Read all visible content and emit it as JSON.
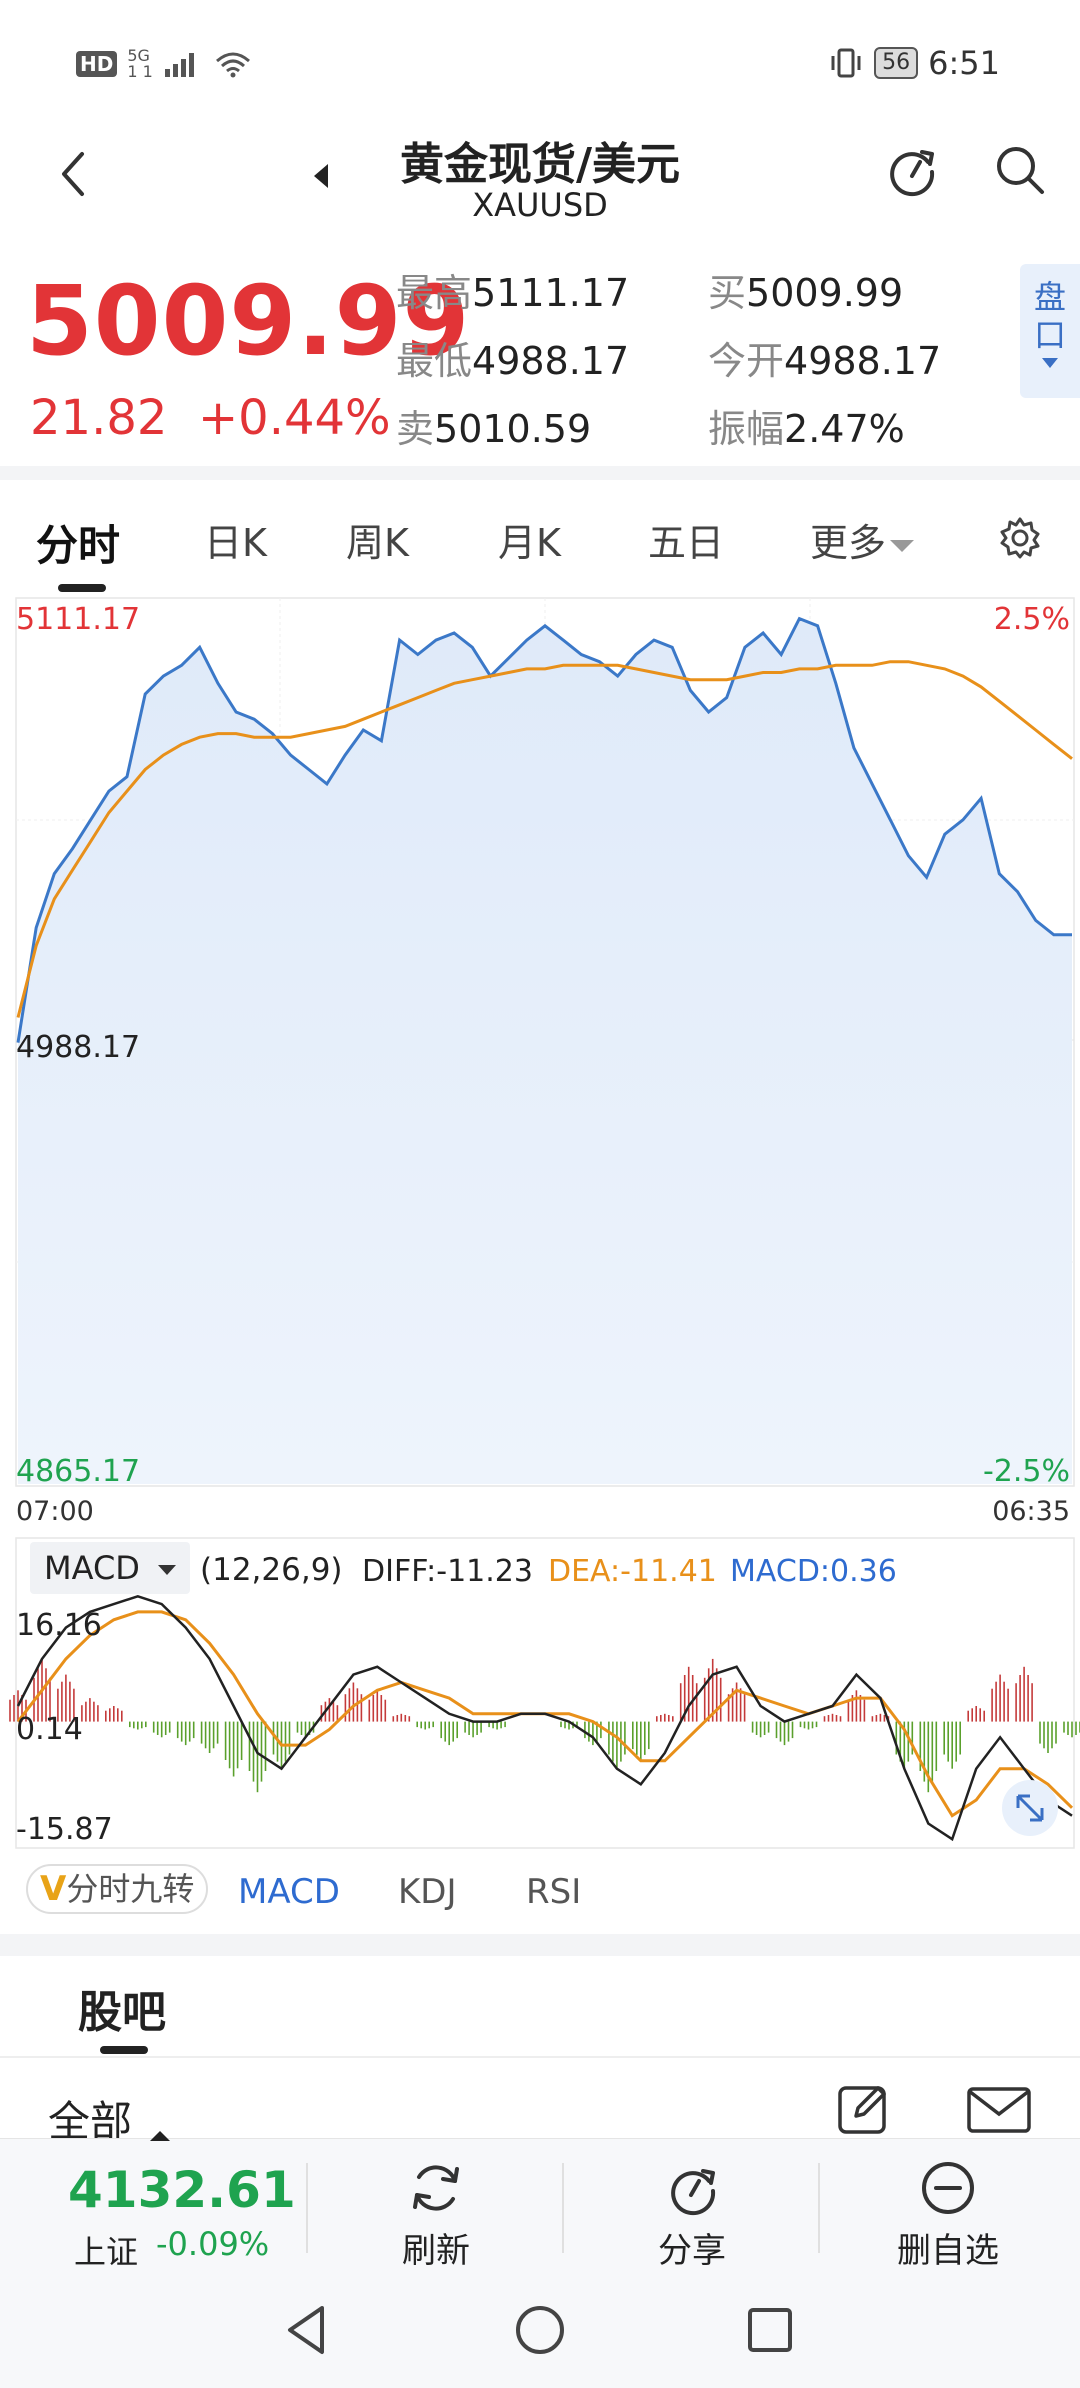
{
  "status_bar": {
    "hd": "HD",
    "network": "5G",
    "network_sub": "1 1",
    "battery": "56",
    "time": "6:51"
  },
  "header": {
    "title": "黄金现货/美元",
    "subtitle": "XAUUSD"
  },
  "quote": {
    "price": "5009.99",
    "change": "21.82",
    "change_pct": "+0.44%",
    "high_label": "最高",
    "high": "5111.17",
    "low_label": "最低",
    "low": "4988.17",
    "sell_label": "卖",
    "sell": "5010.59",
    "buy_label": "买",
    "buy": "5009.99",
    "open_label": "今开",
    "open": "4988.17",
    "amp_label": "振幅",
    "amp": "2.47%",
    "pankou": "盘口"
  },
  "tabs": [
    "分时",
    "日K",
    "周K",
    "月K",
    "五日",
    "更多"
  ],
  "chart": {
    "y_top": "5111.17",
    "y_mid": "4988.17",
    "y_bottom": "4865.17",
    "pct_top": "2.5%",
    "pct_bottom": "-2.5%",
    "time_start": "07:00",
    "time_end": "06:35",
    "macd_selector": "MACD",
    "macd_params": "(12,26,9)",
    "diff": "DIFF:-11.23",
    "dea": "DEA:-11.41",
    "macd_val": "MACD:0.36",
    "macd_top": "16.16",
    "macd_mid": "0.14",
    "macd_bottom": "-15.87"
  },
  "chart_data": [
    {
      "type": "line",
      "y_range": [
        4865.17,
        5111.17
      ],
      "series": [
        {
          "color": "#3b78c8",
          "values": [
            4988,
            5020,
            5035,
            5042,
            5050,
            5058,
            5062,
            5085,
            5090,
            5093,
            5098,
            5088,
            5080,
            5078,
            5074,
            5068,
            5064,
            5060,
            5068,
            5075,
            5072,
            5100,
            5096,
            5100,
            5102,
            5098,
            5090,
            5095,
            5100,
            5104,
            5100,
            5096,
            5094,
            5090,
            5096,
            5100,
            5098,
            5086,
            5080,
            5084,
            5098,
            5102,
            5096,
            5106,
            5104,
            5088,
            5070,
            5060,
            5050,
            5040,
            5034,
            5046,
            5050,
            5056,
            5035,
            5030,
            5022,
            5018,
            5018
          ]
        },
        {
          "color": "#e8901a",
          "values": [
            4995,
            5015,
            5028,
            5036,
            5044,
            5052,
            5058,
            5064,
            5068,
            5071,
            5073,
            5074,
            5074,
            5073,
            5073,
            5073,
            5074,
            5075,
            5076,
            5078,
            5080,
            5082,
            5084,
            5086,
            5088,
            5089,
            5090,
            5091,
            5092,
            5092,
            5093,
            5093,
            5093,
            5093,
            5092,
            5091,
            5090,
            5089,
            5089,
            5089,
            5090,
            5091,
            5091,
            5092,
            5092,
            5093,
            5093,
            5093,
            5094,
            5094,
            5093,
            5092,
            5090,
            5087,
            5083,
            5079,
            5075,
            5071,
            5067
          ]
        }
      ]
    },
    {
      "type": "line",
      "title": "MACD",
      "y_range": [
        -15.87,
        16.16
      ],
      "series": [
        {
          "name": "DIFF",
          "color": "#222222",
          "values": [
            2,
            8,
            12,
            14,
            15,
            16,
            15,
            12,
            8,
            2,
            -4,
            -6,
            -2,
            2,
            6,
            7,
            5,
            3,
            1,
            0,
            0,
            1,
            1,
            0,
            -2,
            -6,
            -8,
            -4,
            2,
            6,
            7,
            2,
            0,
            1,
            2,
            6,
            3,
            -6,
            -13,
            -15,
            -6,
            -2,
            -6,
            -10,
            -12
          ]
        },
        {
          "name": "DEA",
          "color": "#e8901a",
          "values": [
            0,
            4,
            8,
            11,
            13,
            14,
            14,
            13,
            10,
            6,
            1,
            -3,
            -3,
            -1,
            2,
            4,
            5,
            4,
            3,
            1,
            1,
            1,
            1,
            1,
            0,
            -2,
            -5,
            -5,
            -2,
            1,
            4,
            3,
            2,
            1,
            2,
            3,
            3,
            -1,
            -7,
            -12,
            -10,
            -6,
            -6,
            -8,
            -11
          ]
        },
        {
          "name": "MACD",
          "type": "bar",
          "values": [
            4,
            8,
            6,
            3,
            2,
            -1,
            -2,
            -3,
            -4,
            -7,
            -9,
            -6,
            -2,
            3,
            5,
            4,
            1,
            -1,
            -3,
            -2,
            -1,
            0,
            0,
            -1,
            -3,
            -6,
            -5,
            1,
            7,
            8,
            5,
            -2,
            -3,
            -1,
            1,
            4,
            1,
            -6,
            -9,
            -6,
            2,
            6,
            7,
            -4,
            -2
          ]
        }
      ]
    }
  ],
  "indicators": {
    "jiuzhuan_v": "V",
    "jiuzhuan": "分时九转",
    "tabs": [
      "MACD",
      "KDJ",
      "RSI"
    ]
  },
  "guba": {
    "title": "股吧",
    "all": "全部"
  },
  "bottom": {
    "index_value": "4132.61",
    "index_name": "上证",
    "index_pct": "-0.09%",
    "refresh": "刷新",
    "share": "分享",
    "remove": "删自选"
  }
}
